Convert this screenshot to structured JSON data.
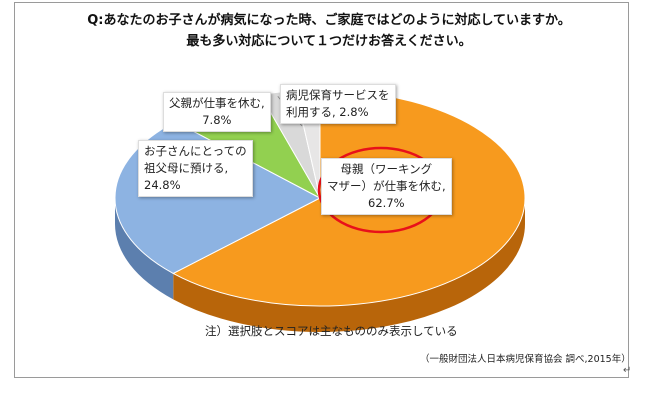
{
  "title_line1": "Q:あなたのお子さんが病気になった時、ご家庭ではどのように対応していますか。",
  "title_line2": "最も多い対応について１つだけお答えください。",
  "note": "注）選択肢とスコアは主なもののみ表示している",
  "source": "（一般財団法人日本病児保育協会 調べ,2015年）",
  "chart_data": {
    "type": "pie",
    "slices": [
      {
        "label_lines": [
          "母親（ワーキング",
          "マザー）が仕事を休む,",
          "62.7%"
        ],
        "value": 62.7,
        "color": "#F79A1E",
        "side": "#B8650A",
        "highlighted": true
      },
      {
        "label_lines": [
          "お子さんにとっての",
          "祖父母に預ける,",
          "24.8%"
        ],
        "value": 24.8,
        "color": "#8DB3E2",
        "side": "#5C7FAE"
      },
      {
        "label_lines": [
          "父親が仕事を休む,",
          "7.8%"
        ],
        "value": 7.8,
        "color": "#92D050",
        "side": "#5E9A2A"
      },
      {
        "label_lines": [
          "病児保育サービスを",
          "利用する, 2.8%"
        ],
        "value": 2.8,
        "color": "#D9D9D9",
        "side": "#A6A6A6"
      },
      {
        "label_lines": [],
        "value": 1.9,
        "color": "#E7E6E6",
        "side": "#B0B0B0"
      }
    ],
    "highlight_color": "#E8101A"
  }
}
